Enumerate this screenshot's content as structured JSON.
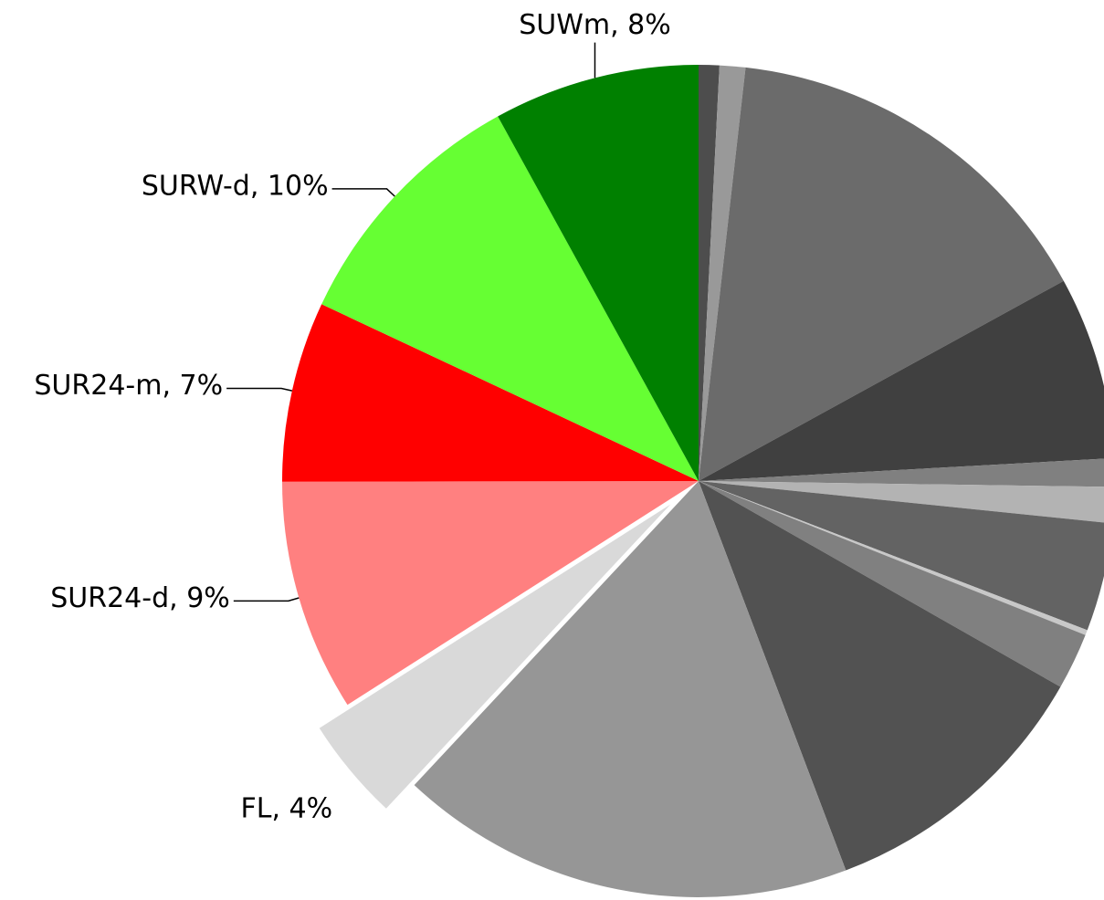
{
  "chart_data": {
    "type": "pie",
    "values": [
      0.8,
      1,
      15.2,
      7.1,
      1.1,
      1.4,
      4.2,
      0.2,
      2.2,
      11,
      17.7,
      4,
      9,
      7,
      10,
      8
    ],
    "labels": [
      null,
      null,
      null,
      null,
      null,
      null,
      null,
      null,
      null,
      null,
      null,
      "FL, 4%",
      "SUR24-d, 9%",
      "SUR24-m, 7%",
      "SURW-d, 10%",
      "SUWm, 8%"
    ],
    "colors": [
      "#4d4d4d",
      "#999999",
      "#6b6b6b",
      "#404040",
      "#808080",
      "#b3b3b3",
      "#636363",
      "#c8c8c8",
      "#808080",
      "#525252",
      "#969696",
      "#d9d9d9",
      "#ff8080",
      "#ff0000",
      "#66ff33",
      "#008000"
    ],
    "explode": [
      false,
      false,
      false,
      false,
      false,
      false,
      false,
      false,
      false,
      false,
      false,
      true,
      false,
      false,
      false,
      false
    ]
  }
}
